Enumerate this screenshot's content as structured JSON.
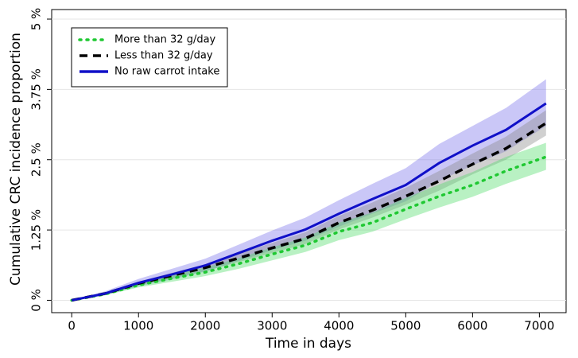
{
  "chart_data": {
    "type": "line",
    "xlabel": "Time in days",
    "ylabel": "Cumulative CRC incidence proportion",
    "x": [
      0,
      500,
      1000,
      1500,
      2000,
      2500,
      3000,
      3500,
      4000,
      4500,
      5000,
      5500,
      6000,
      6500,
      7100
    ],
    "xlim": [
      -300,
      7400
    ],
    "xticks": [
      0,
      1000,
      2000,
      3000,
      4000,
      5000,
      6000,
      7000
    ],
    "ylim": [
      -0.22,
      5.17
    ],
    "yticks": [
      {
        "value": 0,
        "label": "0 %"
      },
      {
        "value": 1.25,
        "label": "1.25 %"
      },
      {
        "value": 2.5,
        "label": "2.5 %"
      },
      {
        "value": 3.75,
        "label": "3.75 %"
      },
      {
        "value": 5,
        "label": "5 %"
      }
    ],
    "grid": true,
    "legend": "top-left",
    "series": [
      {
        "name": "More than 32 g/day",
        "color": "#1fc832",
        "band_color": "#4fdc6a",
        "linestyle": "dotted",
        "values": [
          0,
          0.11,
          0.27,
          0.39,
          0.5,
          0.65,
          0.82,
          0.98,
          1.22,
          1.38,
          1.62,
          1.85,
          2.05,
          2.3,
          2.55
        ],
        "lower": [
          0,
          0.09,
          0.23,
          0.33,
          0.43,
          0.56,
          0.71,
          0.86,
          1.07,
          1.22,
          1.44,
          1.65,
          1.84,
          2.07,
          2.32
        ],
        "upper": [
          0,
          0.14,
          0.32,
          0.46,
          0.58,
          0.75,
          0.94,
          1.12,
          1.38,
          1.56,
          1.82,
          2.06,
          2.28,
          2.55,
          2.8
        ]
      },
      {
        "name": "Less than 32 g/day",
        "color": "#000000",
        "band_color": "#8a8a8a",
        "linestyle": "dashed",
        "values": [
          0,
          0.12,
          0.3,
          0.44,
          0.58,
          0.75,
          0.93,
          1.1,
          1.38,
          1.6,
          1.85,
          2.12,
          2.42,
          2.7,
          3.15
        ],
        "lower": [
          0,
          0.1,
          0.27,
          0.39,
          0.52,
          0.68,
          0.84,
          1.0,
          1.26,
          1.47,
          1.7,
          1.95,
          2.24,
          2.5,
          2.93
        ],
        "upper": [
          0,
          0.14,
          0.33,
          0.49,
          0.64,
          0.83,
          1.02,
          1.21,
          1.5,
          1.74,
          2.0,
          2.3,
          2.61,
          2.91,
          3.38
        ]
      },
      {
        "name": "No raw carrot intake",
        "color": "#1010c8",
        "band_color": "#7a74ec",
        "linestyle": "solid",
        "values": [
          0,
          0.12,
          0.31,
          0.46,
          0.62,
          0.84,
          1.06,
          1.26,
          1.54,
          1.8,
          2.05,
          2.44,
          2.75,
          3.03,
          3.5
        ],
        "lower": [
          0,
          0.09,
          0.25,
          0.37,
          0.51,
          0.7,
          0.89,
          1.06,
          1.31,
          1.54,
          1.76,
          2.12,
          2.4,
          2.65,
          3.1
        ],
        "upper": [
          0,
          0.16,
          0.38,
          0.56,
          0.74,
          0.99,
          1.24,
          1.47,
          1.78,
          2.07,
          2.35,
          2.78,
          3.1,
          3.42,
          3.93
        ]
      }
    ]
  }
}
